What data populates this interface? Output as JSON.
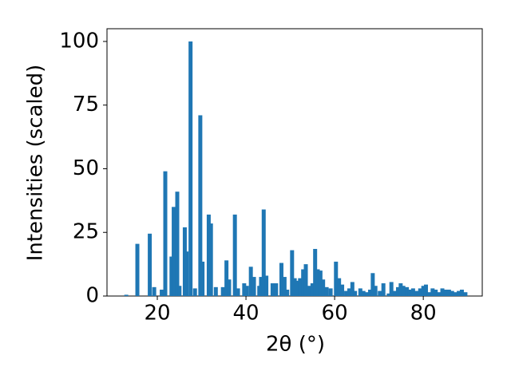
{
  "chart_data": {
    "type": "bar",
    "xlabel": "2θ (°)",
    "ylabel": "Intensities (scaled)",
    "color": "#1f77b4",
    "x": [
      13,
      15.5,
      18.3,
      19.3,
      21,
      21.8,
      23.2,
      23.7,
      24.5,
      25,
      26.2,
      26.6,
      27.5,
      28.5,
      29.7,
      30.2,
      31.6,
      32.1,
      33.2,
      34.8,
      35.6,
      36.2,
      37.5,
      38.2,
      39.6,
      40.2,
      41.1,
      41.8,
      43,
      43.4,
      44,
      44.6,
      46,
      46.8,
      48,
      48.7,
      49.3,
      50.4,
      51,
      51.6,
      52.2,
      52.9,
      53.5,
      54.2,
      55,
      55.6,
      56.2,
      56.8,
      57.4,
      58.2,
      59.1,
      60.3,
      61,
      61.7,
      62.6,
      63.3,
      64,
      64.6,
      65.8,
      66.5,
      67.3,
      68,
      68.6,
      69.2,
      70.2,
      71,
      72.2,
      72.8,
      73.6,
      74.3,
      74.9,
      75.5,
      76.3,
      77,
      77.7,
      78.5,
      79.3,
      80,
      80.6,
      81.3,
      82.1,
      82.8,
      83.5,
      84.3,
      85,
      85.8,
      86.5,
      87.3,
      88,
      88.7,
      89.5
    ],
    "values": [
      0.5,
      20.5,
      24.5,
      3.5,
      2.5,
      49,
      15.5,
      35,
      41,
      4,
      27,
      17.5,
      100,
      3,
      71,
      13.5,
      32,
      28.5,
      3.5,
      3.5,
      14,
      6.5,
      32,
      3,
      5,
      4,
      11.5,
      7.5,
      4,
      7.5,
      34,
      8,
      5,
      5,
      13,
      7.5,
      2.5,
      18,
      7,
      6,
      7,
      10.5,
      12.5,
      4,
      5,
      18.5,
      10.5,
      10,
      6.5,
      3.5,
      3,
      13.5,
      7,
      4.5,
      2,
      3,
      5.5,
      2,
      3,
      2,
      1.5,
      2.5,
      9,
      4,
      2,
      5,
      1,
      5.5,
      2,
      3.5,
      5,
      4,
      3.5,
      2.5,
      3,
      2,
      3,
      4,
      4.5,
      1.5,
      3,
      2.5,
      1.5,
      3,
      2.5,
      2.5,
      2,
      1.5,
      2,
      2.5,
      1.5
    ],
    "xlim": [
      8.65,
      93.3
    ],
    "ylim": [
      0,
      105
    ],
    "xticks": [
      20,
      40,
      60,
      80
    ],
    "yticks": [
      0,
      25,
      50,
      75,
      100
    ]
  }
}
